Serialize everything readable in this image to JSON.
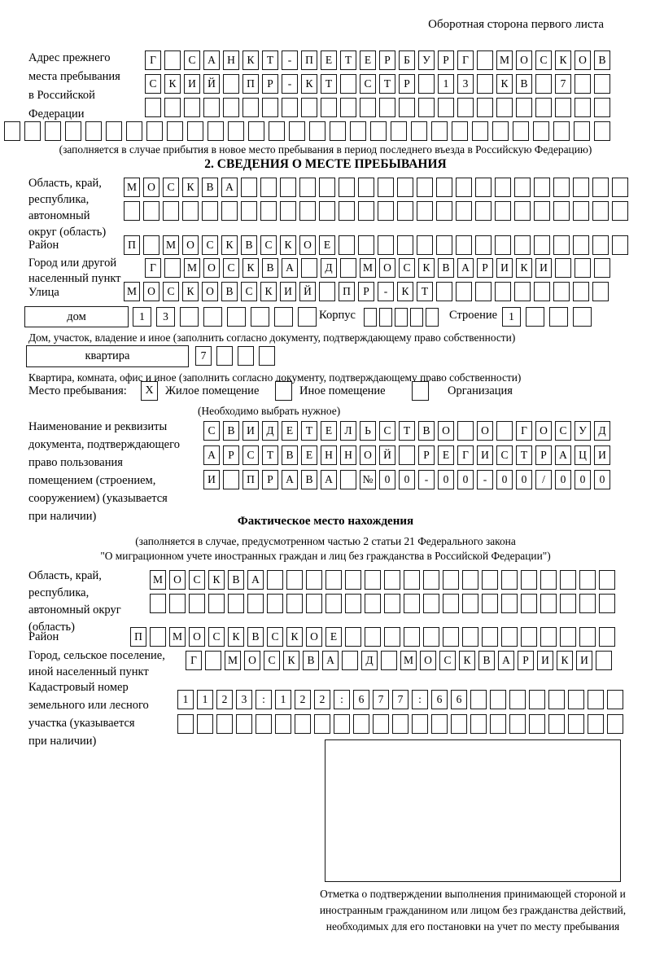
{
  "page": {
    "header_note": "Оборотная сторона первого листа"
  },
  "prev_address": {
    "label": "Адрес прежнего\nместа пребывания\nв Российской\nФедерации",
    "rows": [
      [
        "Г",
        "",
        "С",
        "А",
        "Н",
        "К",
        "Т",
        "-",
        "П",
        "Е",
        "Т",
        "Е",
        "Р",
        "Б",
        "У",
        "Р",
        "Г",
        "",
        "М",
        "О",
        "С",
        "К",
        "О",
        "В"
      ],
      [
        "С",
        "К",
        "И",
        "Й",
        "",
        "П",
        "Р",
        "-",
        "К",
        "Т",
        "",
        "С",
        "Т",
        "Р",
        "",
        "1",
        "3",
        "",
        "К",
        "В",
        "",
        "7",
        "",
        ""
      ],
      [
        "",
        "",
        "",
        "",
        "",
        "",
        "",
        "",
        "",
        "",
        "",
        "",
        "",
        "",
        "",
        "",
        "",
        "",
        "",
        "",
        "",
        "",
        "",
        ""
      ]
    ],
    "row_full": [
      "",
      "",
      "",
      "",
      "",
      "",
      "",
      "",
      "",
      "",
      "",
      "",
      "",
      "",
      "",
      "",
      "",
      "",
      "",
      "",
      "",
      "",
      "",
      "",
      "",
      "",
      "",
      "",
      "",
      ""
    ],
    "note": "(заполняется в случае прибытия в новое место пребывания в период последнего въезда в Российскую Федерацию)"
  },
  "section2": {
    "title": "2. СВЕДЕНИЯ О МЕСТЕ ПРЕБЫВАНИЯ",
    "region": {
      "label": "Область, край,\nреспублика,\nавтономный\nокруг (область)",
      "rows": [
        [
          "М",
          "О",
          "С",
          "К",
          "В",
          "А",
          "",
          "",
          "",
          "",
          "",
          "",
          "",
          "",
          "",
          "",
          "",
          "",
          "",
          "",
          "",
          "",
          "",
          "",
          "",
          ""
        ],
        [
          "",
          "",
          "",
          "",
          "",
          "",
          "",
          "",
          "",
          "",
          "",
          "",
          "",
          "",
          "",
          "",
          "",
          "",
          "",
          "",
          "",
          "",
          "",
          "",
          "",
          ""
        ]
      ]
    },
    "district": {
      "label": "Район",
      "cells": [
        "П",
        "",
        "М",
        "О",
        "С",
        "К",
        "В",
        "С",
        "К",
        "О",
        "Е",
        "",
        "",
        "",
        "",
        "",
        "",
        "",
        "",
        "",
        "",
        "",
        "",
        "",
        "",
        ""
      ]
    },
    "city": {
      "label": "Город или другой\nнаселенный пункт",
      "cells": [
        "Г",
        "",
        "М",
        "О",
        "С",
        "К",
        "В",
        "А",
        "",
        "Д",
        "",
        "М",
        "О",
        "С",
        "К",
        "В",
        "А",
        "Р",
        "И",
        "К",
        "И",
        "",
        "",
        ""
      ]
    },
    "street": {
      "label": "Улица",
      "cells": [
        "М",
        "О",
        "С",
        "К",
        "О",
        "В",
        "С",
        "К",
        "И",
        "Й",
        "",
        "П",
        "Р",
        "-",
        "К",
        "Т",
        "",
        "",
        "",
        "",
        "",
        "",
        "",
        "",
        ""
      ]
    },
    "house": {
      "box_label": "дом",
      "cells": [
        "1",
        "3",
        "",
        "",
        "",
        "",
        "",
        ""
      ],
      "korpus_label": "Корпус",
      "korpus_cells": [
        "",
        "",
        "",
        "",
        ""
      ],
      "stroenie_label": "Строение",
      "stroenie_cells": [
        "1",
        "",
        "",
        ""
      ]
    },
    "house_note": "Дом, участок, владение и иное (заполнить согласно документу, подтверждающему право собственности)",
    "apartment": {
      "box_label": "квартира",
      "cells": [
        "7",
        "",
        "",
        ""
      ]
    },
    "apartment_note": "Квартира, комната, офис и иное (заполнить согласно документу, подтверждающему право собственности)",
    "stay_place": {
      "label": "Место пребывания:",
      "options": [
        {
          "label": "Жилое помещение",
          "mark": "X"
        },
        {
          "label": "Иное помещение",
          "mark": ""
        },
        {
          "label": "Организация",
          "mark": ""
        }
      ],
      "note": "(Необходимо выбрать нужное)"
    },
    "document": {
      "label": "Наименование и реквизиты\nдокумента, подтверждающего\nправо пользования\nпомещением (строением,\nсооружением) (указывается\nпри наличии)",
      "rows": [
        [
          "С",
          "В",
          "И",
          "Д",
          "Е",
          "Т",
          "Е",
          "Л",
          "Ь",
          "С",
          "Т",
          "В",
          "О",
          "",
          "О",
          "",
          "Г",
          "О",
          "С",
          "У",
          "Д"
        ],
        [
          "А",
          "Р",
          "С",
          "Т",
          "В",
          "Е",
          "Н",
          "Н",
          "О",
          "Й",
          "",
          "Р",
          "Е",
          "Г",
          "И",
          "С",
          "Т",
          "Р",
          "А",
          "Ц",
          "И"
        ],
        [
          "И",
          "",
          "П",
          "Р",
          "А",
          "В",
          "А",
          "",
          "№",
          "0",
          "0",
          "-",
          "0",
          "0",
          "-",
          "0",
          "0",
          "/",
          "0",
          "0",
          "0"
        ]
      ]
    }
  },
  "actual_location": {
    "title": "Фактическое место нахождения",
    "note1": "(заполняется в случае, предусмотренном частью 2 статьи 21 Федерального закона",
    "note2": "\"О миграционном учете иностранных граждан и лиц без гражданства в Российской Федерации\")",
    "region": {
      "label": "Область, край,\nреспублика,\nавтономный округ\n(область)",
      "rows": [
        [
          "М",
          "О",
          "С",
          "К",
          "В",
          "А",
          "",
          "",
          "",
          "",
          "",
          "",
          "",
          "",
          "",
          "",
          "",
          "",
          "",
          "",
          "",
          "",
          "",
          ""
        ],
        [
          "",
          "",
          "",
          "",
          "",
          "",
          "",
          "",
          "",
          "",
          "",
          "",
          "",
          "",
          "",
          "",
          "",
          "",
          "",
          "",
          "",
          "",
          "",
          ""
        ]
      ]
    },
    "district": {
      "label": "Район",
      "cells": [
        "П",
        "",
        "М",
        "О",
        "С",
        "К",
        "В",
        "С",
        "К",
        "О",
        "Е",
        "",
        "",
        "",
        "",
        "",
        "",
        "",
        "",
        "",
        "",
        "",
        "",
        "",
        ""
      ]
    },
    "city": {
      "label": "Город, сельское поселение,\nиной населенный пункт",
      "cells": [
        "Г",
        "",
        "М",
        "О",
        "С",
        "К",
        "В",
        "А",
        "",
        "Д",
        "",
        "М",
        "О",
        "С",
        "К",
        "В",
        "А",
        "Р",
        "И",
        "К",
        "И",
        ""
      ]
    },
    "cadastre": {
      "label": "Кадастровый номер\nземельного или лесного\nучастка (указывается\nпри наличии)",
      "rows": [
        [
          "1",
          "1",
          "2",
          "3",
          ":",
          "1",
          "2",
          "2",
          ":",
          "6",
          "7",
          "7",
          ":",
          "6",
          "6",
          "",
          "",
          "",
          "",
          "",
          "",
          "",
          ""
        ],
        [
          "",
          "",
          "",
          "",
          "",
          "",
          "",
          "",
          "",
          "",
          "",
          "",
          "",
          "",
          "",
          "",
          "",
          "",
          "",
          "",
          "",
          "",
          ""
        ]
      ]
    }
  },
  "stamp_box": {
    "caption": "Отметка о подтверждении выполнения принимающей стороной и иностранным гражданином или лицом без гражданства действий, необходимых для его постановки на учет по месту пребывания"
  }
}
